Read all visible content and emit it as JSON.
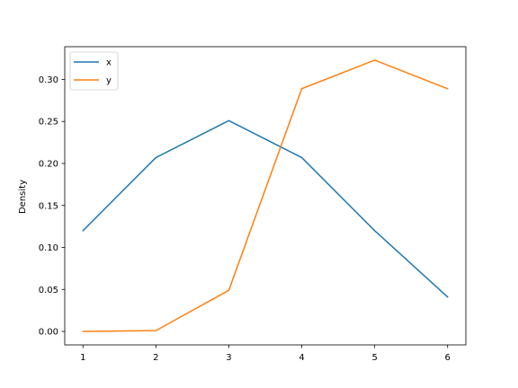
{
  "chart_data": {
    "type": "line",
    "title": "",
    "xlabel": "",
    "ylabel": "Density",
    "x": [
      1,
      2,
      3,
      4,
      5,
      6
    ],
    "xlim": [
      0.75,
      6.25
    ],
    "ylim": [
      -0.016,
      0.339
    ],
    "xticks": [
      "1",
      "2",
      "3",
      "4",
      "5",
      "6"
    ],
    "yticks": [
      "0.00",
      "0.05",
      "0.10",
      "0.15",
      "0.20",
      "0.25",
      "0.30"
    ],
    "grid": false,
    "legend_position": "top-left",
    "series": [
      {
        "name": "x",
        "color": "#1f77b4",
        "values": [
          0.12,
          0.207,
          0.251,
          0.207,
          0.12,
          0.041
        ]
      },
      {
        "name": "y",
        "color": "#ff7f0e",
        "values": [
          0.0,
          0.001,
          0.049,
          0.289,
          0.323,
          0.289
        ]
      }
    ]
  }
}
